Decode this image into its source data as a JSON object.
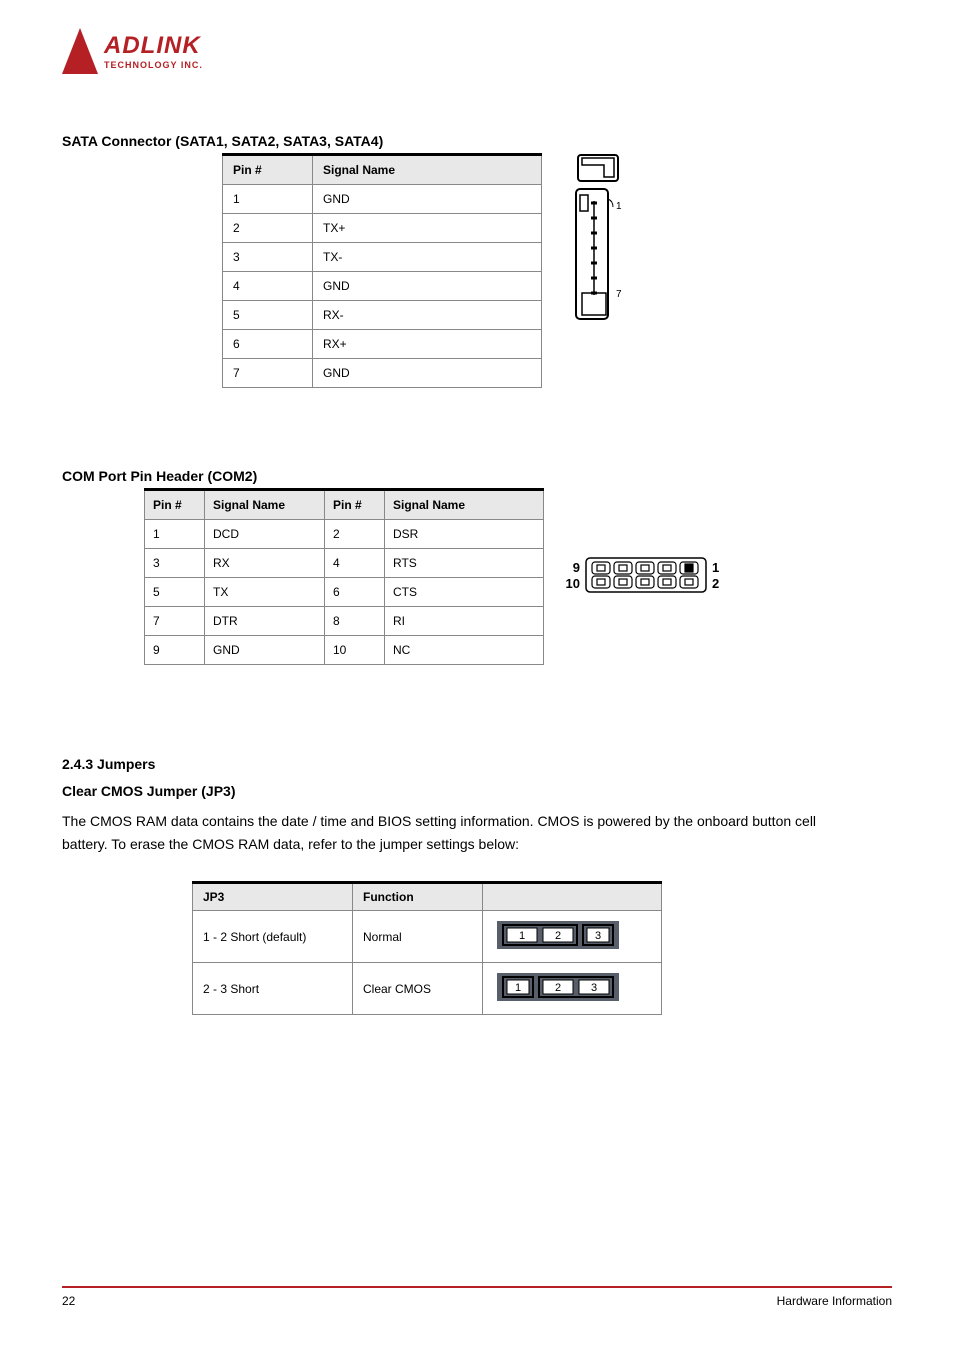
{
  "logo": {
    "main": "ADLINK",
    "sub": "TECHNOLOGY INC."
  },
  "section1": {
    "title": "SATA Connector (SATA1, SATA2, SATA3, SATA4)",
    "headers": [
      "Pin #",
      "Signal Name"
    ],
    "rows": [
      [
        "1",
        "GND"
      ],
      [
        "2",
        "TX+"
      ],
      [
        "3",
        "TX-"
      ],
      [
        "4",
        "GND"
      ],
      [
        "5",
        "RX-"
      ],
      [
        "6",
        "RX+"
      ],
      [
        "7",
        "GND"
      ]
    ],
    "diagram_labels": [
      "1",
      "7"
    ]
  },
  "section2": {
    "title": "COM Port Pin Header (COM2)",
    "headers": [
      "Pin #",
      "Signal Name",
      "Pin #",
      "Signal Name"
    ],
    "rows": [
      [
        "1",
        "DCD",
        "2",
        "DSR"
      ],
      [
        "3",
        "RX",
        "4",
        "RTS"
      ],
      [
        "5",
        "TX",
        "6",
        "CTS"
      ],
      [
        "7",
        "DTR",
        "8",
        "RI"
      ],
      [
        "9",
        "GND",
        "10",
        "NC"
      ]
    ],
    "diagram_labels": [
      "9",
      "10",
      "1",
      "2"
    ]
  },
  "section3": {
    "title": "2.4.3 Jumpers",
    "body": "Clear CMOS Jumper (JP3)\nThe CMOS RAM data contains the date / time and BIOS setting information. CMOS is powered by the onboard button cell battery. To erase the CMOS RAM data, refer to the jumper settings below:",
    "headers": [
      "JP3",
      "Function",
      ""
    ],
    "rows": [
      {
        "pins": "1 - 2 Short (default)",
        "func": "Normal",
        "img_variant": "12short"
      },
      {
        "pins": "2 - 3 Short",
        "func": "Clear CMOS",
        "img_variant": "23short"
      }
    ]
  },
  "footer": {
    "page": "22",
    "label": "Hardware Information"
  },
  "colors": {
    "brand": "#b52025",
    "header_bg": "#e8e8e8",
    "border": "#888888",
    "topbar": "#000000"
  }
}
